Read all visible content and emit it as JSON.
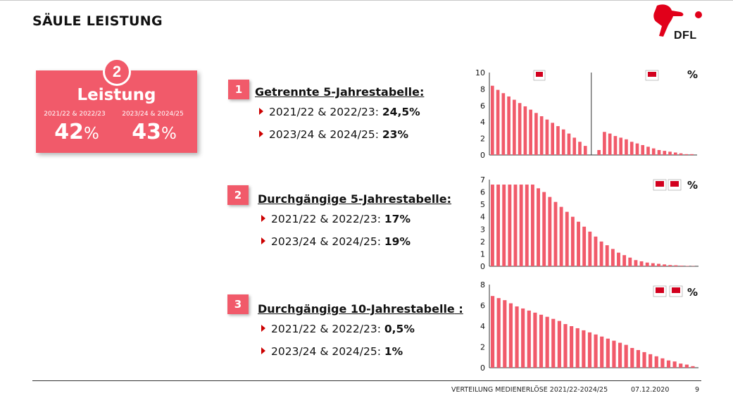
{
  "header": {
    "title": "SÄULE LEISTUNG",
    "logo_text": "DFL"
  },
  "pillar": {
    "number": "2",
    "label": "Leistung",
    "periods": [
      {
        "period": "2021/22 & 2022/23",
        "value": "42",
        "unit": "%"
      },
      {
        "period": "2023/24 & 2024/25",
        "value": "43",
        "unit": "%"
      }
    ]
  },
  "items": [
    {
      "number": "1",
      "heading": "Getrennte 5-Jahrestabelle",
      "colon": ":",
      "bullets": [
        {
          "label": "2021/22 & 2022/23: ",
          "value": "24,5%"
        },
        {
          "label": "2023/24 & 2024/25: ",
          "value": "23%"
        }
      ]
    },
    {
      "number": "2",
      "heading": "Durchgängige 5-Jahrestabelle",
      "colon": ":",
      "bullets": [
        {
          "label": "2021/22 & 2022/23: ",
          "value": "17%"
        },
        {
          "label": "2023/24 & 2024/25: ",
          "value": "19%"
        }
      ]
    },
    {
      "number": "3",
      "heading": "Durchgängige 10-Jahrestabelle",
      "colon": " :",
      "bullets": [
        {
          "label": "2021/22 & 2022/23: ",
          "value": "0,5%"
        },
        {
          "label": "2023/24 & 2024/25: ",
          "value": "1%"
        }
      ]
    }
  ],
  "chart_data": [
    {
      "type": "bar",
      "unit_label": "%",
      "ylim": [
        0,
        10
      ],
      "yticks": [
        "0",
        "2",
        "4",
        "6",
        "8",
        "10"
      ],
      "split_after_index": 17,
      "colors": {
        "bar": "#f15a6a"
      },
      "values": [
        8.4,
        7.9,
        7.5,
        7.1,
        6.7,
        6.3,
        5.9,
        5.5,
        5.1,
        4.7,
        4.3,
        3.9,
        3.5,
        3.1,
        2.6,
        2.1,
        1.6,
        1.1,
        0.6,
        2.8,
        2.6,
        2.3,
        2.1,
        1.9,
        1.6,
        1.4,
        1.2,
        1.0,
        0.8,
        0.6,
        0.5,
        0.4,
        0.3,
        0.2,
        0.1,
        0.1
      ]
    },
    {
      "type": "bar",
      "unit_label": "%",
      "ylim": [
        0,
        7
      ],
      "yticks": [
        "0",
        "1",
        "2",
        "3",
        "4",
        "5",
        "6",
        "7"
      ],
      "colors": {
        "bar": "#f15a6a"
      },
      "values": [
        6.6,
        6.6,
        6.6,
        6.6,
        6.6,
        6.6,
        6.6,
        6.6,
        6.3,
        6.0,
        5.6,
        5.2,
        4.8,
        4.4,
        4.0,
        3.6,
        3.2,
        2.8,
        2.4,
        2.0,
        1.7,
        1.4,
        1.1,
        0.9,
        0.7,
        0.5,
        0.4,
        0.3,
        0.25,
        0.2,
        0.15,
        0.1,
        0.08,
        0.05,
        0.03,
        0.02
      ]
    },
    {
      "type": "bar",
      "unit_label": "%",
      "ylim": [
        0,
        8
      ],
      "yticks": [
        "0",
        "2",
        "4",
        "6",
        "8"
      ],
      "colors": {
        "bar": "#f15a6a"
      },
      "values": [
        6.9,
        6.7,
        6.5,
        6.2,
        5.9,
        5.7,
        5.5,
        5.3,
        5.1,
        4.9,
        4.7,
        4.5,
        4.2,
        4.0,
        3.8,
        3.6,
        3.4,
        3.2,
        3.0,
        2.8,
        2.6,
        2.4,
        2.2,
        1.9,
        1.7,
        1.5,
        1.3,
        1.1,
        0.9,
        0.7,
        0.6,
        0.4,
        0.3,
        0.15
      ]
    }
  ],
  "footer": {
    "title": "VERTEILUNG MEDIENERLÖSE 2021/22-2024/25",
    "date": "07.12.2020",
    "page": "9"
  }
}
